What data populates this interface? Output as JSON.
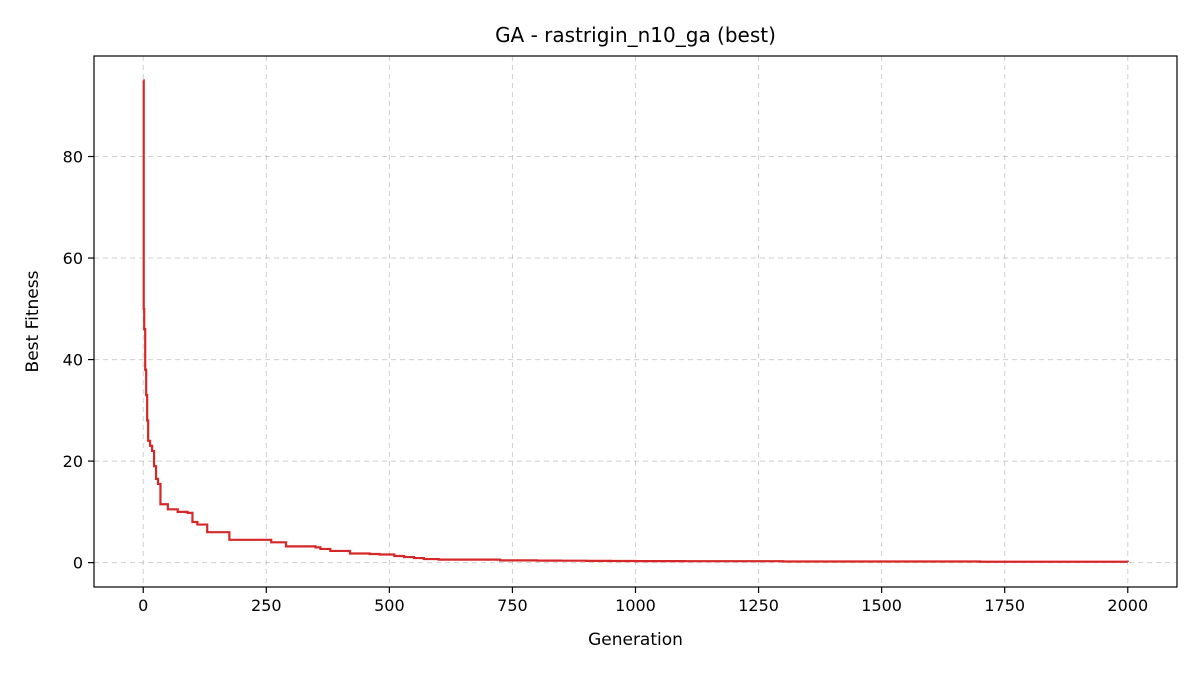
{
  "chart_data": {
    "type": "line",
    "title": "GA - rastrigin_n10_ga (best)",
    "xlabel": "Generation",
    "ylabel": "Best Fitness",
    "xlim": [
      -100,
      2100
    ],
    "ylim": [
      -4.8,
      99.8
    ],
    "xticks": [
      0,
      250,
      500,
      750,
      1000,
      1250,
      1500,
      1750,
      2000
    ],
    "yticks": [
      0,
      20,
      40,
      60,
      80
    ],
    "grid": true,
    "series": [
      {
        "color": "#d62728",
        "step": true,
        "x": [
          0,
          1,
          2,
          4,
          6,
          8,
          10,
          14,
          18,
          22,
          26,
          30,
          35,
          50,
          60,
          70,
          80,
          90,
          100,
          110,
          130,
          160,
          175,
          260,
          290,
          350,
          360,
          380,
          420,
          460,
          480,
          500,
          510,
          530,
          550,
          570,
          600,
          725,
          800,
          850,
          900,
          950,
          1000,
          1100,
          1300,
          1700,
          2000
        ],
        "values": [
          95,
          50,
          46,
          38,
          33,
          28,
          24,
          23,
          22,
          19,
          16.5,
          15.5,
          11.5,
          10.5,
          10.5,
          10,
          10,
          9.8,
          8,
          7.5,
          6,
          6,
          4.5,
          4,
          3.2,
          3,
          2.7,
          2.3,
          1.8,
          1.7,
          1.6,
          1.6,
          1.3,
          1.1,
          0.9,
          0.7,
          0.6,
          0.45,
          0.4,
          0.38,
          0.35,
          0.32,
          0.3,
          0.28,
          0.22,
          0.18,
          0.15
        ]
      }
    ]
  }
}
